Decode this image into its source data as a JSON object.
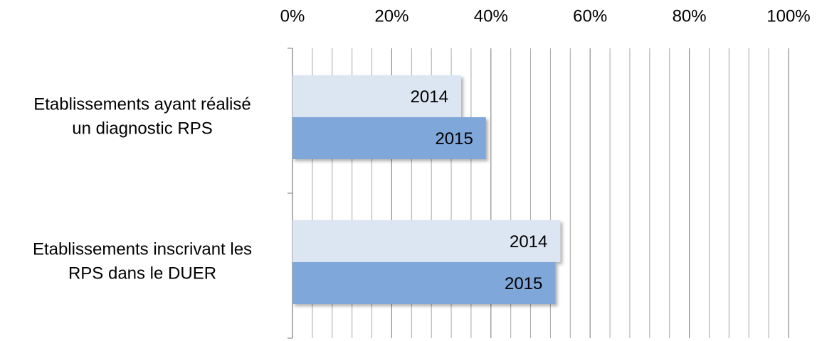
{
  "chart_data": {
    "type": "barh",
    "categories": [
      [
        "Etablissements ayant réalisé",
        "un diagnostic RPS"
      ],
      [
        "Etablissements inscrivant les",
        "RPS dans le DUER"
      ]
    ],
    "series": [
      {
        "name": "2014",
        "color": "#dce6f2",
        "values": [
          34,
          54
        ]
      },
      {
        "name": "2015",
        "color": "#7fa7d9",
        "values": [
          39,
          53
        ]
      }
    ],
    "xlim": [
      0,
      100
    ],
    "xticks": [
      {
        "value": 0,
        "label": "0%"
      },
      {
        "value": 20,
        "label": "20%"
      },
      {
        "value": 40,
        "label": "40%"
      },
      {
        "value": 60,
        "label": "60%"
      },
      {
        "value": 80,
        "label": "80%"
      },
      {
        "value": 100,
        "label": "100%"
      }
    ],
    "xminor_ticks": [
      4,
      8,
      12,
      16,
      24,
      28,
      32,
      36,
      44,
      48,
      52,
      56,
      64,
      68,
      72,
      76,
      84,
      88,
      92,
      96
    ],
    "grid": true
  }
}
